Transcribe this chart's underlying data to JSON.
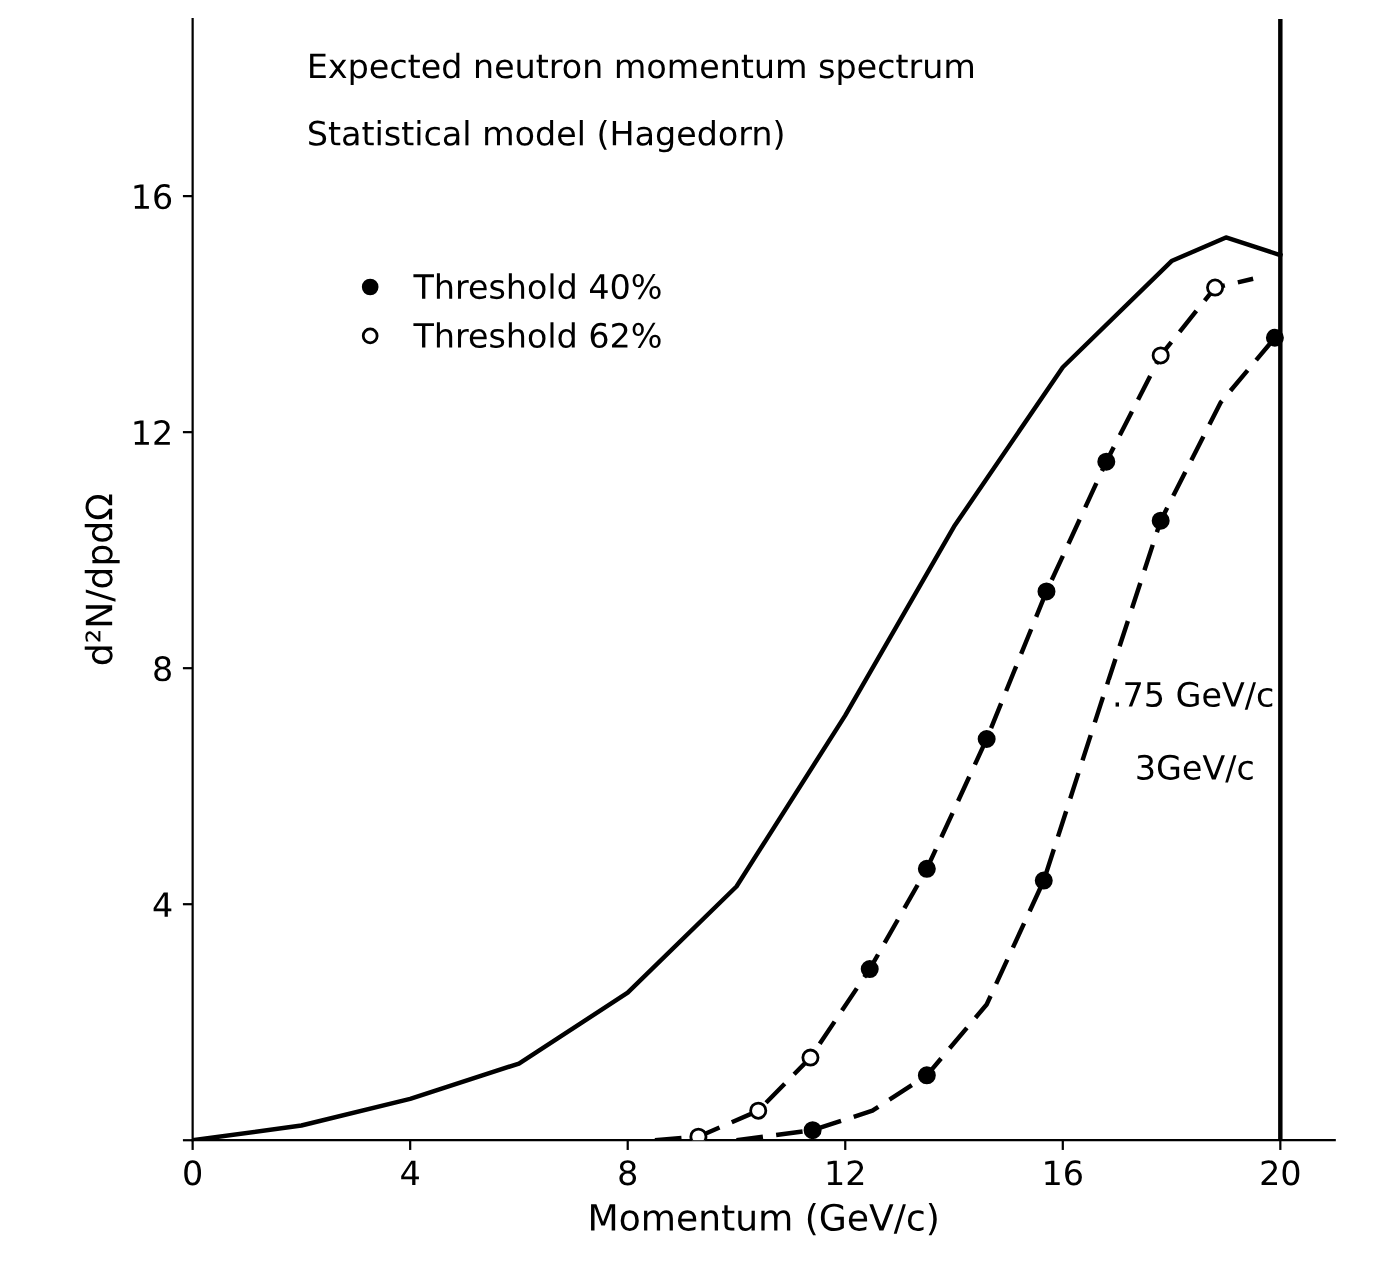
{
  "chart_data": {
    "type": "line",
    "title": "Expected neutron momentum spectrum",
    "subtitle": "Statistical model (Hagedorn)",
    "xlabel": "Momentum (GeV/c)",
    "ylabel": "d²N/dpdΩ",
    "xlim": [
      0,
      21
    ],
    "ylim": [
      0,
      19
    ],
    "xticks": [
      0,
      4,
      8,
      12,
      16,
      20
    ],
    "yticks": [
      {
        "value": 0,
        "label": null
      },
      4,
      8,
      12,
      16
    ],
    "grid": false,
    "legend": "top left",
    "series": [
      {
        "line_style": "solid",
        "marker": "none",
        "color": "#000000",
        "x": [
          0,
          2,
          4,
          6,
          8,
          10,
          12,
          14,
          16,
          18,
          19,
          20
        ],
        "values": [
          0,
          0.25,
          0.7,
          1.3,
          2.5,
          4.3,
          7.2,
          10.4,
          13.1,
          14.9,
          15.3,
          15.0
        ]
      },
      {
        "type": "line",
        "line_style": "dashed",
        "marker": "none",
        "color": "#000000",
        "x": [
          8.5,
          9.3,
          10.4,
          11.36,
          12.45,
          13.5,
          14.6,
          15.7,
          16.8,
          17.8,
          18.8,
          19.5
        ],
        "values": [
          0,
          0.06,
          0.5,
          1.4,
          2.9,
          4.6,
          6.8,
          9.3,
          11.5,
          13.3,
          14.45,
          14.6
        ]
      },
      {
        "type": "line",
        "line_style": "dashed",
        "marker": "none",
        "color": "#000000",
        "x": [
          10,
          11.4,
          12.5,
          13.5,
          14.6,
          15.65,
          16.7,
          17.8,
          18.9,
          19.9
        ],
        "values": [
          0,
          0.17,
          0.5,
          1.1,
          2.3,
          4.4,
          7.4,
          10.5,
          12.5,
          13.6
        ]
      },
      {
        "type": "scatter",
        "name": "Threshold 40%",
        "marker": "circle",
        "color": "#000000",
        "x": [
          12.45,
          13.5,
          14.6,
          15.7,
          16.8,
          11.4,
          13.5,
          15.65,
          17.8,
          19.9
        ],
        "values": [
          2.9,
          4.6,
          6.8,
          9.3,
          11.5,
          0.17,
          1.1,
          4.4,
          10.5,
          13.6
        ]
      },
      {
        "type": "scatter",
        "name": "Threshold 62%",
        "marker": "circle",
        "color": "#ffffff",
        "x": [
          9.3,
          10.4,
          11.36,
          17.8,
          18.8
        ],
        "values": [
          0.06,
          0.5,
          1.4,
          13.3,
          14.45
        ]
      }
    ],
    "ref_lines": [
      {
        "axis": "x",
        "value": 20,
        "color": "#000000",
        "line_style": "solid"
      }
    ],
    "annotations": [
      ".75 GeV/c",
      "3GeV/c"
    ]
  }
}
